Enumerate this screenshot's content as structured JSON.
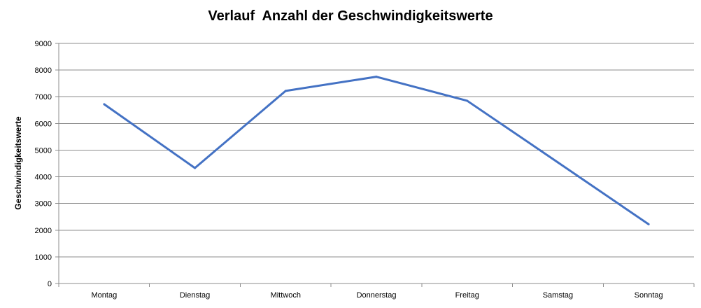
{
  "chart_data": {
    "type": "line",
    "title": "Verlauf  Anzahl der Geschwindigkeitswerte",
    "xlabel": "",
    "ylabel": "Geschwindigkeitswerte",
    "categories": [
      "Montag",
      "Dienstag",
      "Mittwoch",
      "Donnerstag",
      "Freitag",
      "Samstag",
      "Sonntag"
    ],
    "series": [
      {
        "values": [
          6720,
          4330,
          7220,
          7750,
          6850,
          4540,
          2220
        ],
        "color": "#4472C4"
      }
    ],
    "ylim": [
      0,
      9000
    ],
    "yticks": [
      "0",
      "1000",
      "2000",
      "3000",
      "4000",
      "5000",
      "6000",
      "7000",
      "8000",
      "9000"
    ],
    "grid": true,
    "legend": "none"
  }
}
